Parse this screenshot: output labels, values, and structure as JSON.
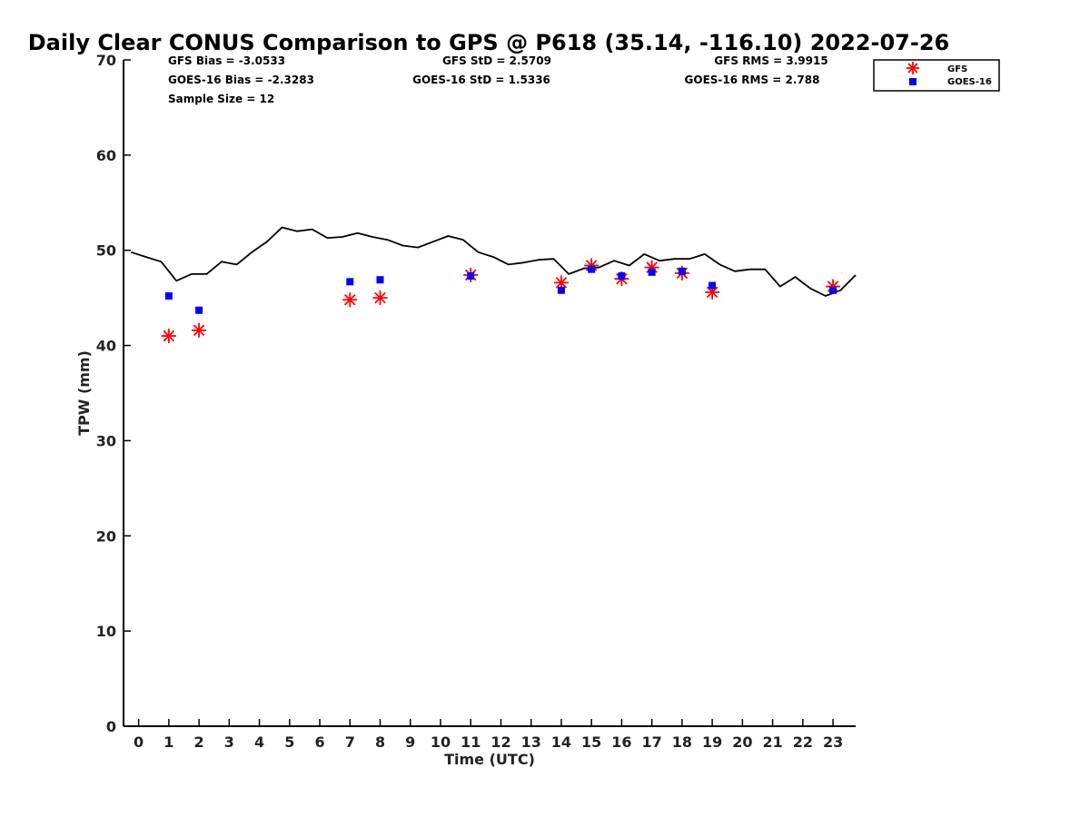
{
  "chart_data": {
    "type": "scatter",
    "title": "Daily Clear CONUS Comparison to GPS @ P618 (35.14, -116.10) 2022-07-26",
    "xlabel": "Time (UTC)",
    "ylabel": "TPW (mm)",
    "xlim": [
      -0.5,
      23.75
    ],
    "ylim": [
      0,
      70
    ],
    "xticks": [
      0,
      1,
      2,
      3,
      4,
      5,
      6,
      7,
      8,
      9,
      10,
      11,
      12,
      13,
      14,
      15,
      16,
      17,
      18,
      19,
      20,
      21,
      22,
      23
    ],
    "yticks": [
      0,
      10,
      20,
      30,
      40,
      50,
      60,
      70
    ],
    "grid": false,
    "legend_position": "top-right outside",
    "stats": {
      "gfs_bias": "GFS Bias = -3.0533",
      "gfs_std": "GFS StD = 2.5709",
      "gfs_rms": "GFS RMS = 3.9915",
      "goes_bias": "GOES-16 Bias = -2.3283",
      "goes_std": "GOES-16 StD = 1.5336",
      "goes_rms": "GOES-16 RMS = 2.788",
      "sample_size": "Sample Size = 12"
    },
    "series": [
      {
        "name": "GPS",
        "kind": "line",
        "color": "#000000",
        "x": [
          -0.25,
          0.25,
          0.75,
          1.25,
          1.75,
          2.25,
          2.75,
          3.25,
          3.75,
          4.25,
          4.75,
          5.25,
          5.75,
          6.25,
          6.75,
          7.25,
          7.75,
          8.25,
          8.75,
          9.25,
          9.75,
          10.25,
          10.75,
          11.25,
          11.75,
          12.25,
          12.75,
          13.25,
          13.75,
          14.25,
          14.75,
          15.25,
          15.75,
          16.25,
          16.75,
          17.25,
          17.75,
          18.25,
          18.75,
          19.25,
          19.75,
          20.25,
          20.75,
          21.25,
          21.75,
          22.25,
          22.75,
          23.25,
          23.75
        ],
        "y": [
          49.8,
          49.3,
          48.8,
          46.8,
          47.5,
          47.5,
          48.8,
          48.5,
          49.8,
          50.9,
          52.4,
          52.0,
          52.2,
          51.3,
          51.4,
          51.8,
          51.4,
          51.1,
          50.5,
          50.3,
          50.9,
          51.5,
          51.1,
          49.8,
          49.3,
          48.5,
          48.7,
          49.0,
          49.1,
          47.5,
          48.1,
          48.2,
          48.9,
          48.4,
          49.6,
          48.9,
          49.1,
          49.1,
          49.6,
          48.5,
          47.8,
          48.0,
          48.0,
          46.2,
          47.2,
          46.0,
          45.2,
          45.8,
          47.4
        ]
      },
      {
        "name": "GFS",
        "kind": "marker-asterisk",
        "color": "#ff0000",
        "x": [
          1,
          2,
          7,
          8,
          11,
          14,
          15,
          16,
          17,
          18,
          19,
          23
        ],
        "y": [
          41.0,
          41.6,
          44.8,
          45.0,
          47.4,
          46.6,
          48.4,
          47.0,
          48.2,
          47.6,
          45.6,
          46.2
        ]
      },
      {
        "name": "GOES-16",
        "kind": "marker-square",
        "color": "#0000ff",
        "x": [
          1,
          2,
          7,
          8,
          11,
          14,
          15,
          16,
          17,
          18,
          19,
          23
        ],
        "y": [
          45.2,
          43.7,
          46.7,
          46.9,
          47.3,
          45.8,
          48.0,
          47.3,
          47.7,
          47.8,
          46.3,
          45.8
        ]
      }
    ]
  }
}
